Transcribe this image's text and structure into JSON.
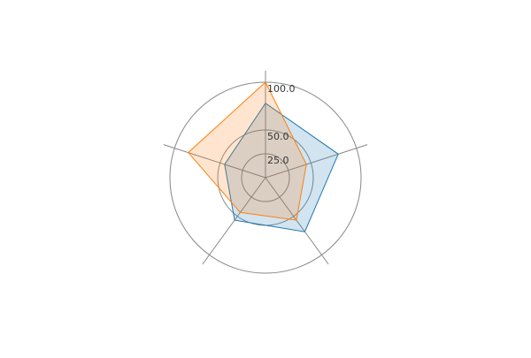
{
  "chart_data": {
    "type": "radar",
    "title": "",
    "axes_count": 5,
    "rlim": [
      0,
      100
    ],
    "ticks": [
      25,
      50,
      100
    ],
    "tick_labels": [
      "25.0",
      "50.0",
      "100.0"
    ],
    "grid": true,
    "legend": "none",
    "series": [
      {
        "values": [
          78,
          80,
          70,
          55,
          45
        ],
        "color": "#1f77b4"
      },
      {
        "values": [
          100,
          45,
          55,
          45,
          85
        ],
        "color": "#ff7f0e"
      }
    ]
  }
}
